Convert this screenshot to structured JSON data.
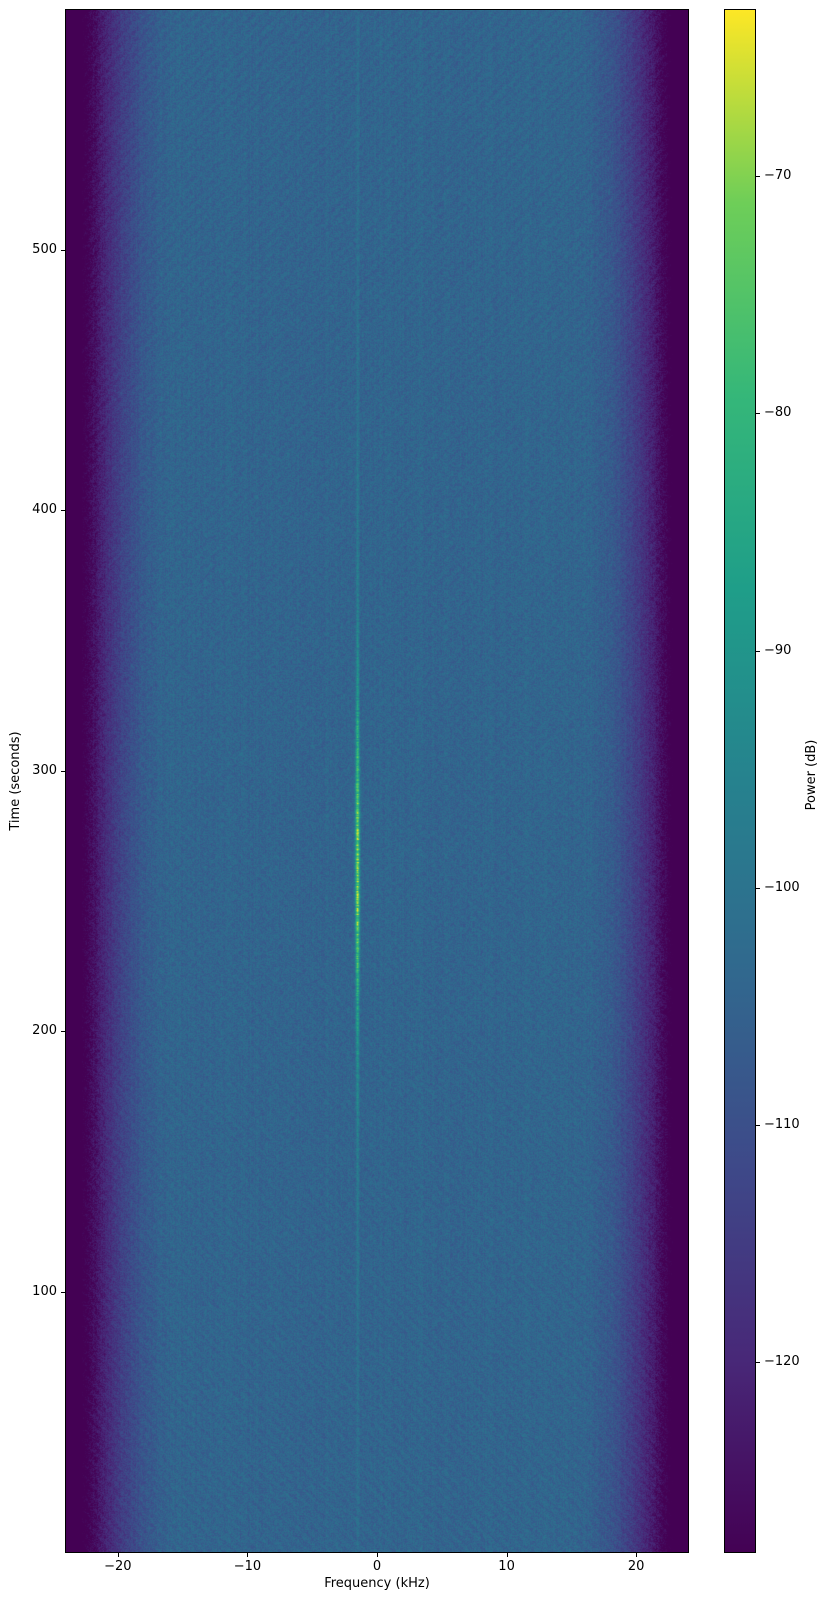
{
  "figure": {
    "kind": "spectrogram",
    "background_color": "#ffffff",
    "text_color": "#000000"
  },
  "chart_data": {
    "type": "heatmap",
    "subtype": "spectrogram",
    "title": "",
    "xlabel": "Frequency (kHz)",
    "ylabel": "Time (seconds)",
    "xlim": [
      -24,
      24
    ],
    "ylim": [
      0,
      592
    ],
    "x_ticks": [
      -20,
      -10,
      0,
      10,
      20
    ],
    "x_tick_labels": [
      "−20",
      "−10",
      "0",
      "10",
      "20"
    ],
    "y_ticks": [
      100,
      200,
      300,
      400,
      500
    ],
    "y_tick_labels": [
      "100",
      "200",
      "300",
      "400",
      "500"
    ],
    "grid": false,
    "colormap": "viridis",
    "viridis_stops": [
      "#440154",
      "#482878",
      "#3e4989",
      "#31688e",
      "#26828e",
      "#1f9e89",
      "#35b779",
      "#6ece58",
      "#fde725"
    ],
    "colorbar": {
      "label": "Power (dB)",
      "clim": [
        -128,
        -63
      ],
      "ticks": [
        -70,
        -80,
        -90,
        -100,
        -110,
        -120
      ],
      "tick_labels": [
        "−70",
        "−80",
        "−90",
        "−100",
        "−110",
        "−120"
      ],
      "position": "right"
    },
    "background_field": {
      "noise_floor_db": -104.3,
      "noise_ripple_db": 3.5,
      "passband_halfwidth_khz": 15,
      "edge_rolloff_db": 36,
      "edge_floor_db": -128,
      "texture": "diagonal speckle noise"
    },
    "signal": {
      "description": "narrowband tone with Doppler-style intensity peak",
      "frequency_khz": -1.54,
      "visible_time_range_s": [
        0,
        592
      ],
      "bright_time_range_s": [
        200,
        330
      ],
      "peak_time_s": 264,
      "peak_power_db": -70,
      "baseline_power_db": -101
    }
  }
}
